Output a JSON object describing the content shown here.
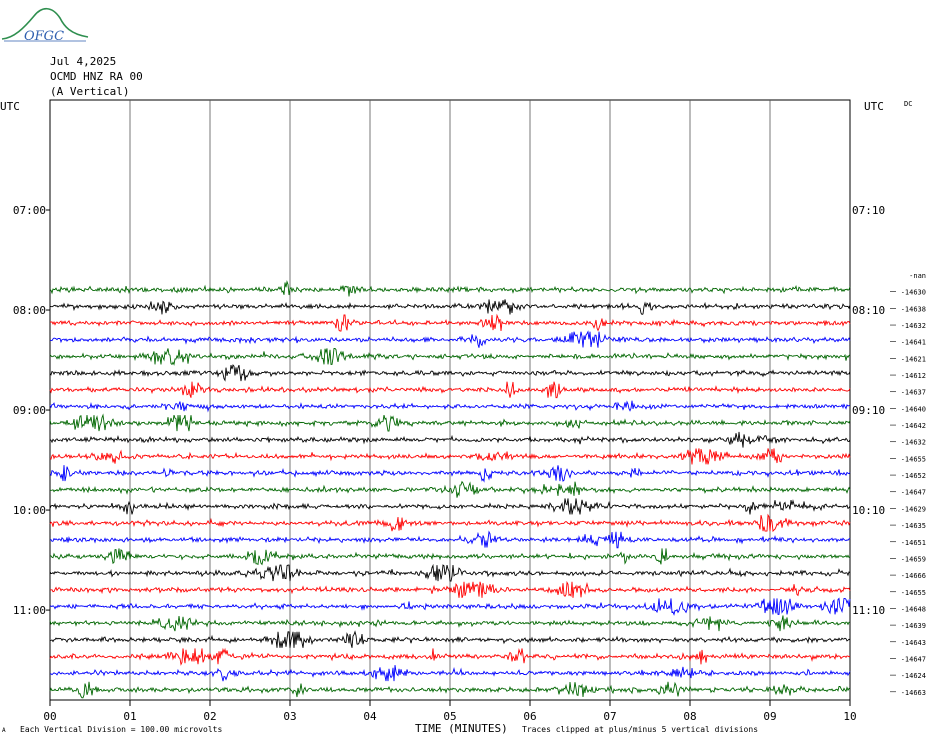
{
  "header": {
    "logo_text": "OFGC",
    "date": "Jul 4,2025",
    "station": "OCMD HNZ RA 00",
    "component": "(A Vertical)",
    "utc_left": "UTC",
    "utc_right": "UTC",
    "dc_label": "DC"
  },
  "footer": {
    "scale_note": "Each Vertical Division =  100.00 microvolts",
    "clip_note": "Traces clipped at plus/minus 5 vertical divisions",
    "corner_mark": "A"
  },
  "chart_data": {
    "type": "line",
    "title": "",
    "xlabel": "TIME (MINUTES)",
    "ylabel": "",
    "xlim": [
      0,
      10
    ],
    "x_ticks": [
      "00",
      "01",
      "02",
      "03",
      "04",
      "05",
      "06",
      "07",
      "08",
      "09",
      "10"
    ],
    "grid": true,
    "left_time_labels": [
      "07:00",
      "08:00",
      "09:00",
      "10:00",
      "11:00"
    ],
    "right_time_labels": [
      "07:10",
      "08:10",
      "09:10",
      "10:10",
      "11:10"
    ],
    "rows_per_hour": 6,
    "first_trace_row": 11,
    "trace_color_cycle": [
      "#006600",
      "#000000",
      "#ff0000",
      "#0000ff"
    ],
    "dc_offsets": [
      "-nan",
      "-14630",
      "-14638",
      "-14632",
      "-14641",
      "-14621",
      "-14612",
      "-14637",
      "-14640",
      "-14642",
      "-14632",
      "-14655",
      "-14652",
      "-14647",
      "-14629",
      "-14635",
      "-14651",
      "-14659",
      "-14666",
      "-14655",
      "-14648",
      "-14639",
      "-14643",
      "-14647",
      "-14624",
      "-14663"
    ]
  }
}
